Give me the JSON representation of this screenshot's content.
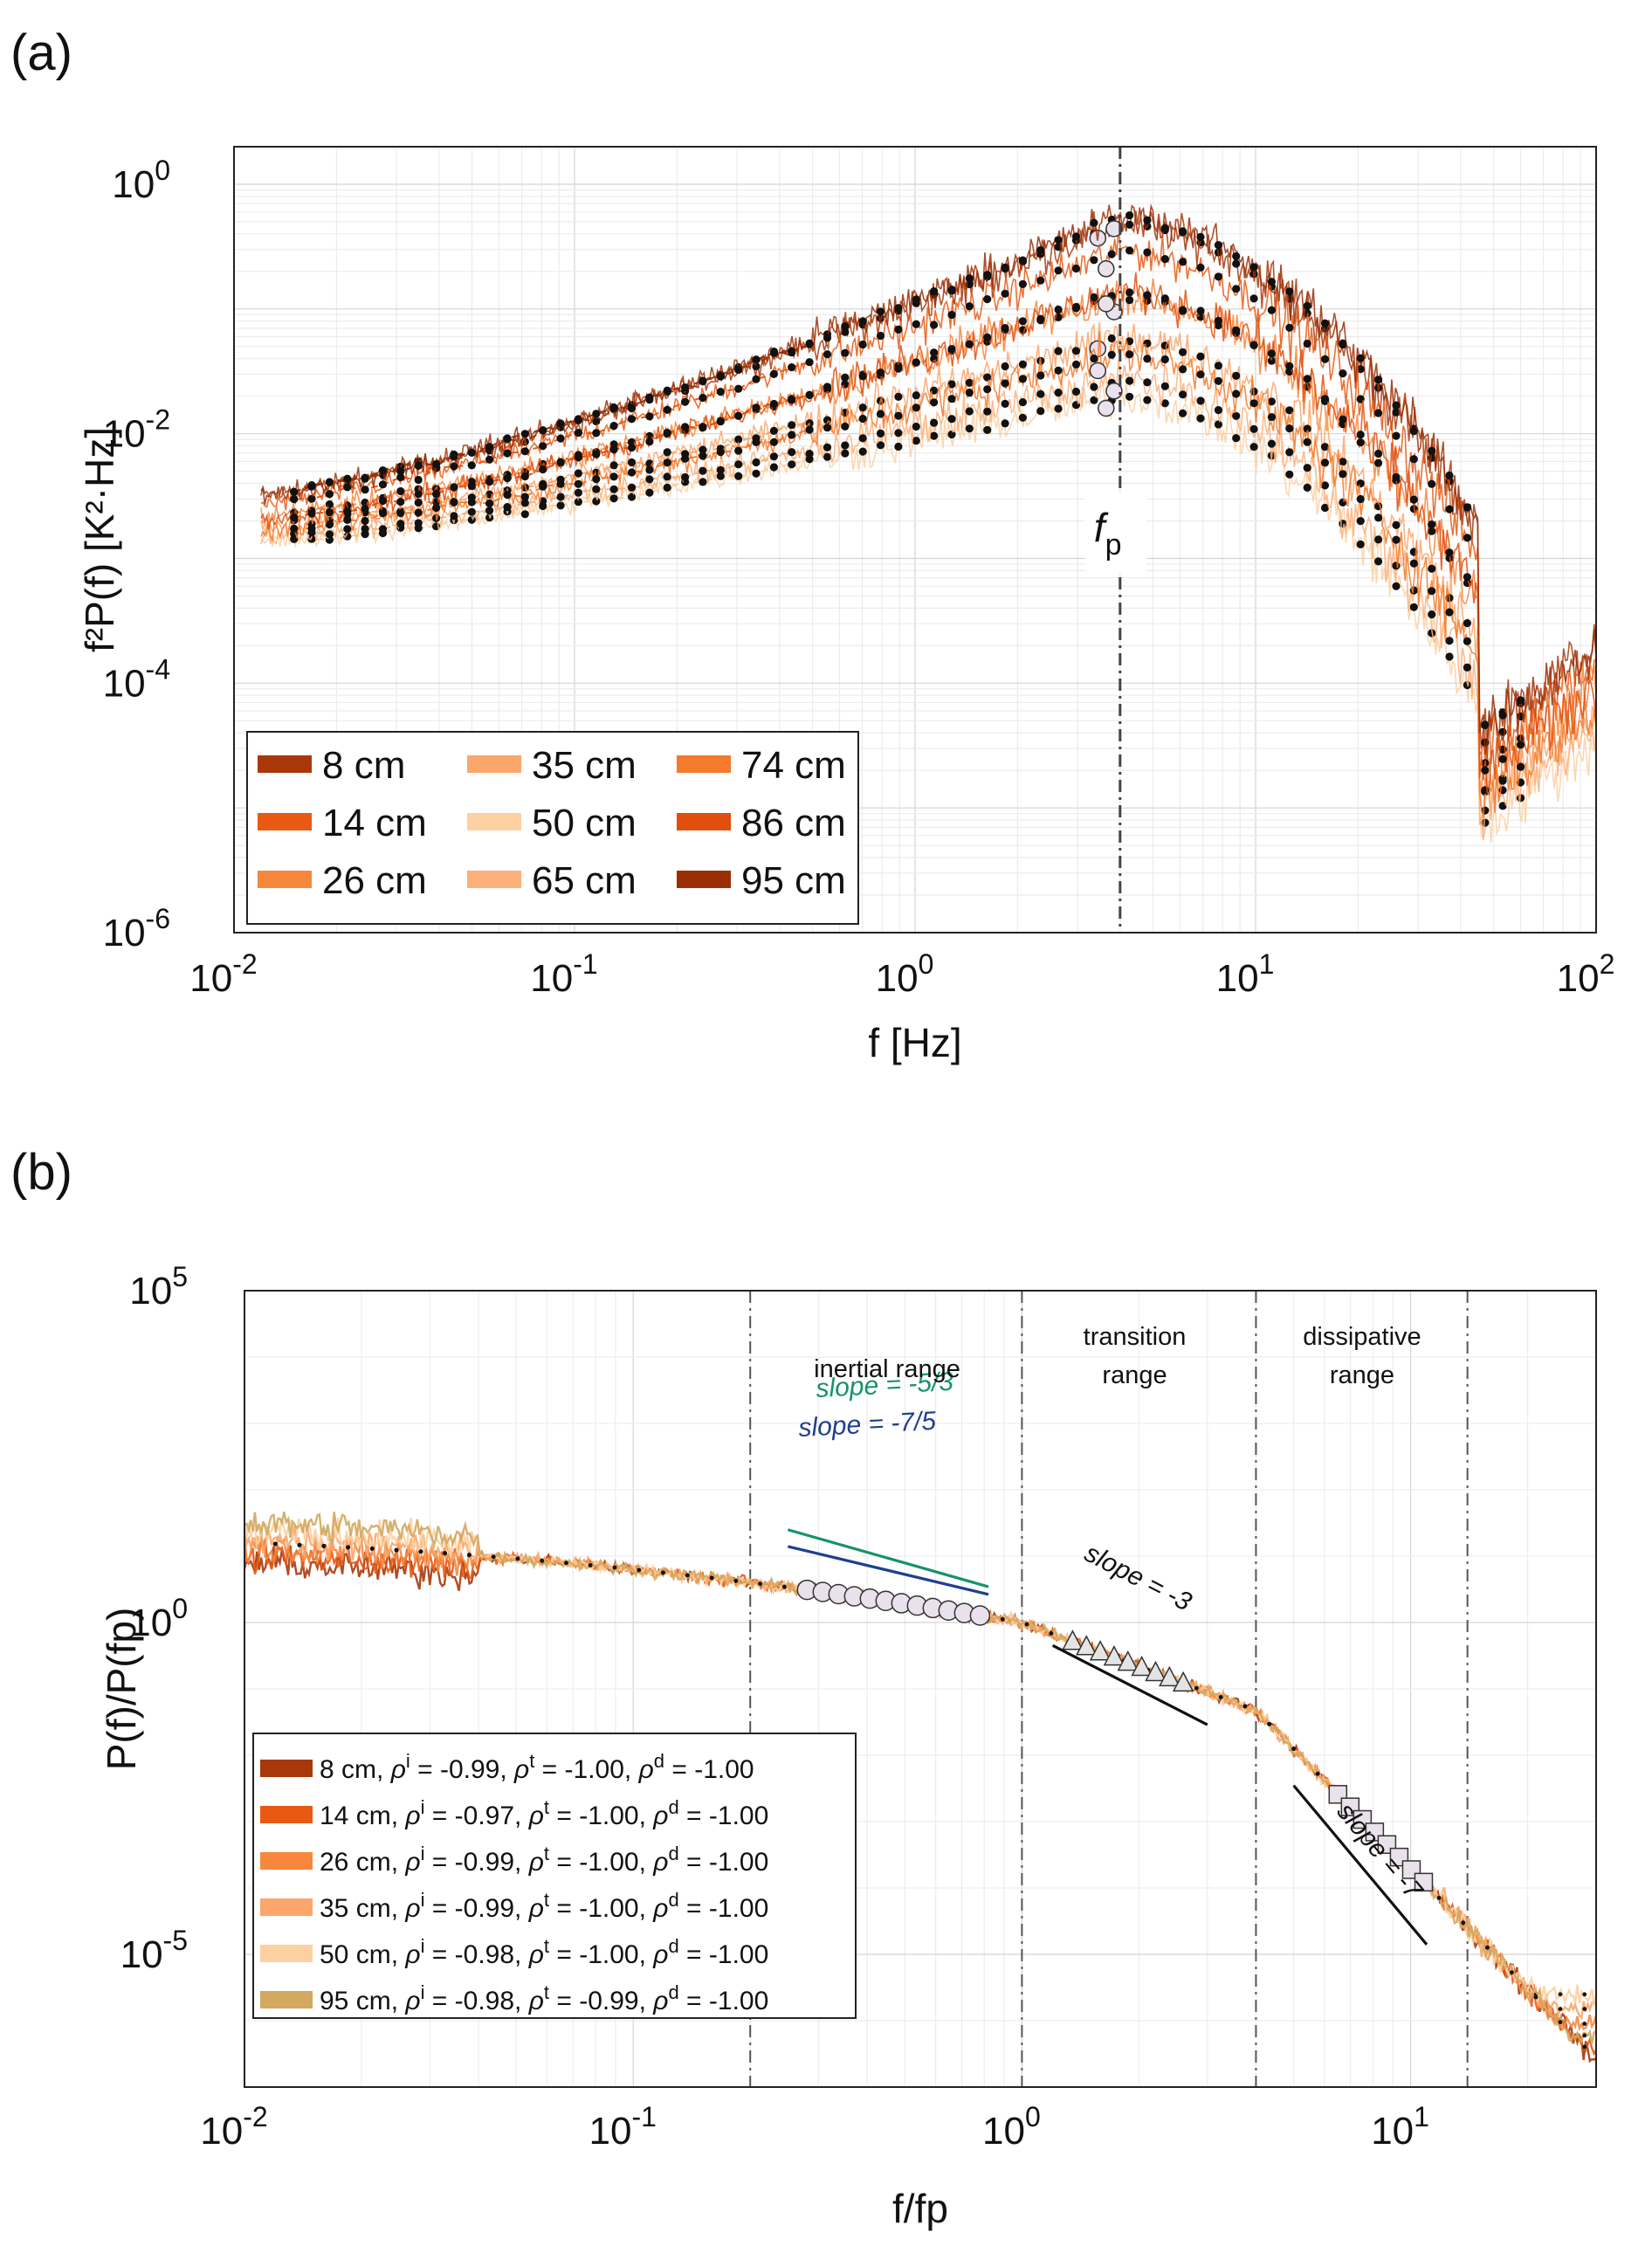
{
  "figure": {
    "label_a": "(a)",
    "label_b": "(b)"
  },
  "chart_data": [
    {
      "panel": "(a)",
      "type": "line",
      "xlabel": "f [Hz]",
      "ylabel": "f²P(f) [K²·Hz]",
      "xscale": "log",
      "yscale": "log",
      "xlim": [
        0.01,
        100
      ],
      "ylim": [
        1e-06,
        2
      ],
      "xticks": [
        {
          "v": 0.01,
          "b": "10",
          "e": "-2"
        },
        {
          "v": 0.1,
          "b": "10",
          "e": "-1"
        },
        {
          "v": 1,
          "b": "10",
          "e": "0"
        },
        {
          "v": 10,
          "b": "10",
          "e": "1"
        },
        {
          "v": 100,
          "b": "10",
          "e": "2"
        }
      ],
      "yticks": [
        {
          "v": 1e-06,
          "b": "10",
          "e": "-6"
        },
        {
          "v": 0.0001,
          "b": "10",
          "e": "-4"
        },
        {
          "v": 0.01,
          "b": "10",
          "e": "-2"
        },
        {
          "v": 1,
          "b": "10",
          "e": "0"
        }
      ],
      "fp": {
        "label": "f",
        "sub": "p",
        "x": 4.0
      },
      "series": [
        {
          "name": "8 cm",
          "color": "#a8380a",
          "peak": 0.5,
          "low": 0.003,
          "tail": 0.0002,
          "npeak": 0.37
        },
        {
          "name": "14 cm",
          "color": "#e85a14",
          "peak": 0.3,
          "low": 0.0026,
          "tail": 0.00015,
          "npeak": 0.21
        },
        {
          "name": "26 cm",
          "color": "#f6873d",
          "peak": 0.13,
          "low": 0.0021,
          "tail": 0.0001,
          "npeak": 0.095
        },
        {
          "name": "35 cm",
          "color": "#fba66a",
          "peak": 0.06,
          "low": 0.0017,
          "tail": 6e-05,
          "npeak": 0.048
        },
        {
          "name": "50 cm",
          "color": "#fdd0a2",
          "peak": 0.02,
          "low": 0.0013,
          "tail": 3.5e-05,
          "npeak": 0.016
        },
        {
          "name": "65 cm",
          "color": "#fbb07a",
          "peak": 0.028,
          "low": 0.0014,
          "tail": 4.5e-05,
          "npeak": 0.022
        },
        {
          "name": "74 cm",
          "color": "#f47a2c",
          "peak": 0.045,
          "low": 0.0016,
          "tail": 6e-05,
          "npeak": 0.032
        },
        {
          "name": "86 cm",
          "color": "#e04f0c",
          "peak": 0.14,
          "low": 0.0019,
          "tail": 9e-05,
          "npeak": 0.11
        },
        {
          "name": "95 cm",
          "color": "#9a2f06",
          "peak": 0.55,
          "low": 0.003,
          "tail": 0.0002,
          "npeak": 0.44
        }
      ],
      "legend_placement": "bottom-left"
    },
    {
      "panel": "(b)",
      "type": "line",
      "xlabel": "f/fp",
      "ylabel": "P(f)/P(fp)",
      "xscale": "log",
      "yscale": "log",
      "xlim": [
        0.01,
        30
      ],
      "ylim": [
        1e-07,
        100000.0
      ],
      "xticks": [
        {
          "v": 0.01,
          "b": "10",
          "e": "-2"
        },
        {
          "v": 0.1,
          "b": "10",
          "e": "-1"
        },
        {
          "v": 1,
          "b": "10",
          "e": "0"
        },
        {
          "v": 10,
          "b": "10",
          "e": "1"
        }
      ],
      "yticks": [
        {
          "v": 1e-05,
          "b": "10",
          "e": "-5"
        },
        {
          "v": 1,
          "b": "10",
          "e": "0"
        },
        {
          "v": 100000.0,
          "b": "10",
          "e": "5"
        }
      ],
      "boundaries": [
        0.2,
        1.0,
        4.0,
        14.0
      ],
      "regions": [
        {
          "lines": [
            "inertial range"
          ],
          "x": 0.45
        },
        {
          "lines": [
            "transition",
            "range"
          ],
          "x": 1.95
        },
        {
          "lines": [
            "dissipative",
            "range"
          ],
          "x": 7.5
        }
      ],
      "slopes": [
        {
          "label": "slope = -5/3",
          "color": "#17926b",
          "x0": 0.25,
          "x1": 0.82,
          "y0": 25
        },
        {
          "label": "slope = -7/5",
          "color": "#1f3f8f",
          "x0": 0.25,
          "x1": 0.82,
          "y0": 14
        },
        {
          "label": "slope = -3",
          "color": "#111111",
          "x0": 1.2,
          "x1": 3.0,
          "y0": 0.45
        },
        {
          "label": "slope = -7",
          "color": "#111111",
          "x0": 5.0,
          "x1": 11.0,
          "y0": 0.0035
        }
      ],
      "series": [
        {
          "name": "8 cm",
          "rho_i": "-0.99",
          "rho_t": "-1.00",
          "rho_d": "-1.00",
          "color": "#a8380a",
          "floor": 1.5e-07
        },
        {
          "name": "14 cm",
          "rho_i": "-0.97",
          "rho_t": "-1.00",
          "rho_d": "-1.00",
          "color": "#e85a14",
          "floor": 4e-07
        },
        {
          "name": "26 cm",
          "rho_i": "-0.99",
          "rho_t": "-1.00",
          "rho_d": "-1.00",
          "color": "#f6873d",
          "floor": 9e-07
        },
        {
          "name": "35 cm",
          "rho_i": "-0.99",
          "rho_t": "-1.00",
          "rho_d": "-1.00",
          "color": "#fba66a",
          "floor": 1.5e-06
        },
        {
          "name": "50 cm",
          "rho_i": "-0.98",
          "rho_t": "-1.00",
          "rho_d": "-1.00",
          "color": "#fdd0a2",
          "floor": 2.5e-06
        },
        {
          "name": "95 cm",
          "rho_i": "-0.98",
          "rho_t": "-0.99",
          "rho_d": "-1.00",
          "color": "#d2a95f",
          "floor": 6e-07
        }
      ],
      "legend_placement": "bottom-left"
    }
  ]
}
